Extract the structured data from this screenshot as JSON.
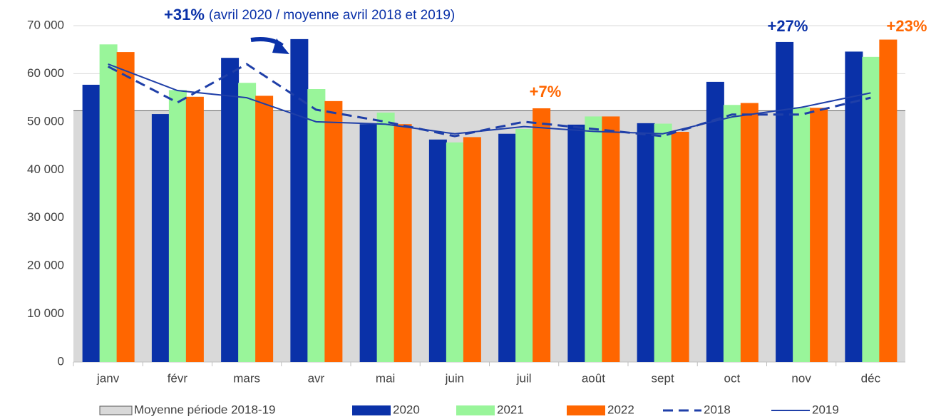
{
  "chart_data": {
    "type": "bar",
    "categories": [
      "janv",
      "févr",
      "mars",
      "avr",
      "mai",
      "juin",
      "juil",
      "août",
      "sept",
      "oct",
      "nov",
      "déc"
    ],
    "average": {
      "name": "Moyenne période 2018-19",
      "value": 52300,
      "color": "#d9d9d9"
    },
    "series": [
      {
        "name": "2020",
        "type": "bar",
        "color": "#0a31a8",
        "values": [
          57700,
          51600,
          63300,
          67200,
          49500,
          46300,
          47500,
          49400,
          49700,
          58300,
          66600,
          64600
        ]
      },
      {
        "name": "2021",
        "type": "bar",
        "color": "#99f59a",
        "values": [
          66100,
          56600,
          58100,
          56800,
          51900,
          45700,
          48500,
          51100,
          49600,
          53500,
          53000,
          63500
        ]
      },
      {
        "name": "2022",
        "type": "bar",
        "color": "#ff6600",
        "values": [
          64500,
          55200,
          55400,
          54300,
          49500,
          46800,
          52800,
          51100,
          47900,
          53900,
          52900,
          67100
        ]
      },
      {
        "name": "2018",
        "type": "line",
        "dashed": true,
        "color": "#1f3fa8",
        "values": [
          61500,
          54000,
          62000,
          52500,
          50000,
          47000,
          50000,
          48500,
          47000,
          51500,
          51500,
          55000
        ]
      },
      {
        "name": "2019",
        "type": "line",
        "dashed": false,
        "color": "#1f3fa8",
        "values": [
          62000,
          56500,
          55000,
          50000,
          49500,
          47500,
          49000,
          48000,
          47500,
          51000,
          53000,
          56000
        ]
      }
    ],
    "ylim": [
      0,
      70000
    ],
    "yticks": [
      0,
      {
        "value": 10000,
        "label": "10 000"
      },
      {
        "value": 20000,
        "label": "20 000"
      },
      {
        "value": 30000,
        "label": "30 000"
      },
      {
        "value": 40000,
        "label": "40 000"
      },
      {
        "value": 50000,
        "label": "50 000"
      },
      {
        "value": 60000,
        "label": "60 000"
      },
      {
        "value": 70000,
        "label": "70 000"
      }
    ],
    "grid": true,
    "annotations": [
      {
        "text": "+31%",
        "color": "#0a31a8",
        "bold": true
      },
      {
        "text": "(avril 2020 / moyenne avril 2018 et 2019)",
        "color": "#0a31a8",
        "bold": false
      },
      {
        "text": "+7%",
        "color": "#ff6600",
        "bold": true
      },
      {
        "text": "+27%",
        "color": "#0a31a8",
        "bold": true
      },
      {
        "text": "+23%",
        "color": "#ff6600",
        "bold": true
      }
    ]
  }
}
